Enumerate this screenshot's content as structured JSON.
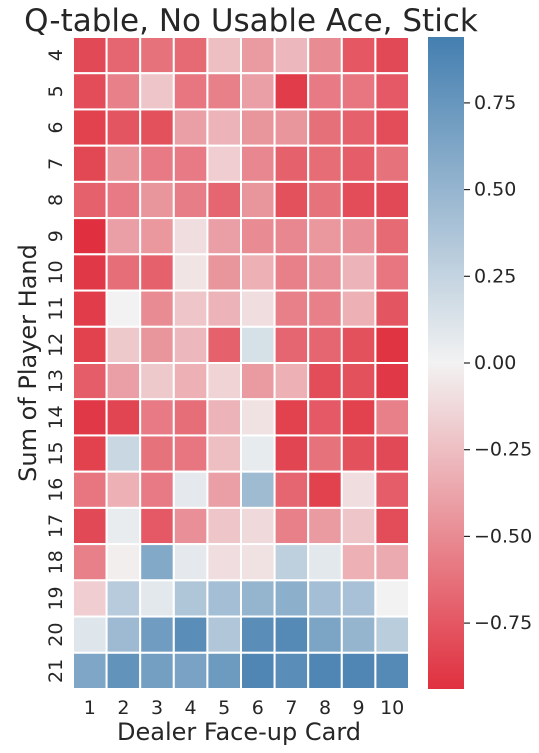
{
  "chart_data": {
    "type": "heatmap",
    "title": "Q-table, No Usable Ace, Stick",
    "xlabel": "Dealer Face-up Card",
    "ylabel": "Sum of Player Hand",
    "x_categories": [
      "1",
      "2",
      "3",
      "4",
      "5",
      "6",
      "7",
      "8",
      "9",
      "10"
    ],
    "y_categories": [
      "4",
      "5",
      "6",
      "7",
      "8",
      "9",
      "10",
      "11",
      "12",
      "13",
      "14",
      "15",
      "16",
      "17",
      "18",
      "19",
      "20",
      "21"
    ],
    "values": [
      [
        -0.82,
        -0.68,
        -0.62,
        -0.66,
        -0.25,
        -0.42,
        -0.28,
        -0.5,
        -0.75,
        -0.82
      ],
      [
        -0.8,
        -0.55,
        -0.22,
        -0.6,
        -0.55,
        -0.4,
        -0.88,
        -0.58,
        -0.6,
        -0.74
      ],
      [
        -0.86,
        -0.76,
        -0.78,
        -0.4,
        -0.3,
        -0.45,
        -0.45,
        -0.63,
        -0.7,
        -0.8
      ],
      [
        -0.83,
        -0.45,
        -0.58,
        -0.58,
        -0.18,
        -0.52,
        -0.7,
        -0.65,
        -0.72,
        -0.62
      ],
      [
        -0.7,
        -0.58,
        -0.45,
        -0.56,
        -0.68,
        -0.45,
        -0.78,
        -0.62,
        -0.8,
        -0.82
      ],
      [
        -0.94,
        -0.4,
        -0.44,
        -0.1,
        -0.4,
        -0.5,
        -0.52,
        -0.44,
        -0.48,
        -0.66
      ],
      [
        -0.9,
        -0.64,
        -0.7,
        -0.07,
        -0.45,
        -0.32,
        -0.55,
        -0.48,
        -0.3,
        -0.6
      ],
      [
        -0.88,
        0.0,
        -0.5,
        -0.22,
        -0.3,
        -0.1,
        -0.55,
        -0.55,
        -0.32,
        -0.76
      ],
      [
        -0.86,
        -0.2,
        -0.45,
        -0.28,
        -0.7,
        0.15,
        -0.68,
        -0.68,
        -0.78,
        -0.92
      ],
      [
        -0.72,
        -0.4,
        -0.2,
        -0.32,
        -0.15,
        -0.42,
        -0.32,
        -0.8,
        -0.78,
        -0.9
      ],
      [
        -0.9,
        -0.84,
        -0.58,
        -0.64,
        -0.3,
        -0.08,
        -0.86,
        -0.74,
        -0.86,
        -0.55
      ],
      [
        -0.86,
        0.22,
        -0.62,
        -0.6,
        -0.25,
        0.06,
        -0.84,
        -0.62,
        -0.78,
        -0.82
      ],
      [
        -0.6,
        -0.32,
        -0.58,
        0.07,
        -0.4,
        0.45,
        -0.68,
        -0.86,
        -0.1,
        -0.72
      ],
      [
        -0.82,
        0.05,
        -0.74,
        -0.48,
        -0.22,
        -0.12,
        -0.55,
        -0.42,
        -0.22,
        -0.8
      ],
      [
        -0.55,
        -0.02,
        0.6,
        0.07,
        -0.1,
        -0.08,
        0.28,
        0.08,
        -0.32,
        -0.35
      ],
      [
        -0.18,
        0.32,
        0.08,
        0.36,
        0.42,
        0.5,
        0.55,
        0.42,
        0.4,
        0.0
      ],
      [
        0.1,
        0.46,
        0.7,
        0.82,
        0.35,
        0.82,
        0.85,
        0.64,
        0.5,
        0.3
      ],
      [
        0.62,
        0.78,
        0.68,
        0.65,
        0.72,
        0.88,
        0.82,
        0.88,
        0.88,
        0.85
      ]
    ],
    "vmin": -0.94,
    "vmax": 0.94,
    "colorbar_ticks": [
      0.75,
      0.5,
      0.25,
      0.0,
      -0.25,
      -0.5,
      -0.75
    ],
    "colorbar_tick_labels": [
      "0.75",
      "0.50",
      "0.25",
      "0.00",
      "−0.25",
      "−0.50",
      "−0.75"
    ],
    "colormap": {
      "negative": "#e0303f",
      "zero": "#f2f2f2",
      "positive": "#447fb0"
    }
  }
}
